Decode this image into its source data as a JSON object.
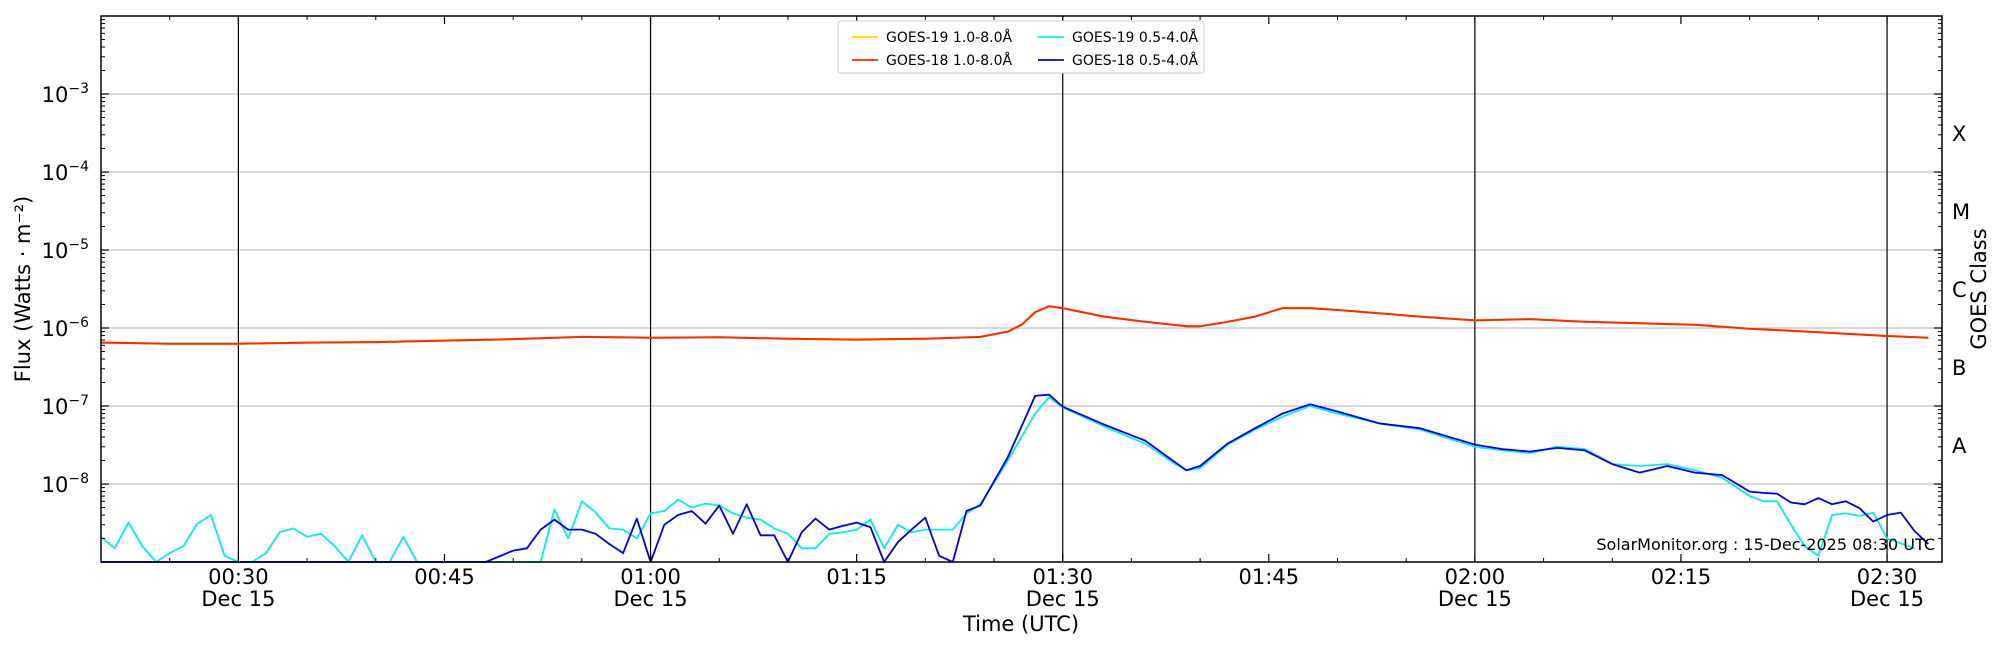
{
  "chart_data": {
    "type": "line",
    "xlabel": "Time (UTC)",
    "ylabel": "Flux (Watts · m⁻²)",
    "y2label": "GOES Class",
    "yscale": "log",
    "xlim": [
      "00:20",
      "02:34"
    ],
    "ylim": [
      1e-09,
      0.01
    ],
    "grid": "horizontal",
    "legend": "top-center",
    "credit": "SolarMonitor.org : 15-Dec-2025 08:30 UTC",
    "x_ticks": [
      {
        "time": "00:30",
        "line1": "00:30",
        "line2": "Dec 15"
      },
      {
        "time": "00:45",
        "line1": "00:45",
        "line2": ""
      },
      {
        "time": "01:00",
        "line1": "01:00",
        "line2": "Dec 15"
      },
      {
        "time": "01:15",
        "line1": "01:15",
        "line2": ""
      },
      {
        "time": "01:30",
        "line1": "01:30",
        "line2": "Dec 15"
      },
      {
        "time": "01:45",
        "line1": "01:45",
        "line2": ""
      },
      {
        "time": "02:00",
        "line1": "02:00",
        "line2": "Dec 15"
      },
      {
        "time": "02:15",
        "line1": "02:15",
        "line2": ""
      },
      {
        "time": "02:30",
        "line1": "02:30",
        "line2": "Dec 15"
      }
    ],
    "y_ticks": [
      {
        "exp": -8,
        "base": "10",
        "sup": "−8"
      },
      {
        "exp": -7,
        "base": "10",
        "sup": "−7"
      },
      {
        "exp": -6,
        "base": "10",
        "sup": "−6"
      },
      {
        "exp": -5,
        "base": "10",
        "sup": "−5"
      },
      {
        "exp": -4,
        "base": "10",
        "sup": "−4"
      },
      {
        "exp": -3,
        "base": "10",
        "sup": "−3"
      }
    ],
    "goes_classes": [
      {
        "label": "A",
        "exp": -7.5
      },
      {
        "label": "B",
        "exp": -6.5
      },
      {
        "label": "C",
        "exp": -5.5
      },
      {
        "label": "M",
        "exp": -4.5
      },
      {
        "label": "X",
        "exp": -3.5
      }
    ],
    "vertical_lines": [
      "00:30",
      "01:00",
      "01:30",
      "02:00",
      "02:30"
    ],
    "series": [
      {
        "name": "GOES-19 1.0-8.0Å",
        "color": "#ffd700",
        "x": [
          "00:20",
          "00:25",
          "00:30",
          "00:35",
          "00:40",
          "00:45",
          "00:50",
          "00:55",
          "01:00",
          "01:05",
          "01:10",
          "01:15",
          "01:20",
          "01:24",
          "01:26",
          "01:27",
          "01:28",
          "01:29",
          "01:30",
          "01:33",
          "01:36",
          "01:39",
          "01:40",
          "01:42",
          "01:44",
          "01:46",
          "01:48",
          "01:50",
          "01:53",
          "01:56",
          "02:00",
          "02:04",
          "02:08",
          "02:12",
          "02:16",
          "02:20",
          "02:25",
          "02:30",
          "02:33"
        ],
        "y": [
          6.5e-07,
          6.3e-07,
          6.3e-07,
          6.5e-07,
          6.6e-07,
          6.9e-07,
          7.2e-07,
          7.7e-07,
          7.5e-07,
          7.6e-07,
          7.3e-07,
          7.1e-07,
          7.3e-07,
          7.7e-07,
          9e-07,
          1.1e-06,
          1.6e-06,
          1.9e-06,
          1.8e-06,
          1.4e-06,
          1.2e-06,
          1.05e-06,
          1.05e-06,
          1.2e-06,
          1.4e-06,
          1.8e-06,
          1.8e-06,
          1.7e-06,
          1.55e-06,
          1.4e-06,
          1.25e-06,
          1.3e-06,
          1.2e-06,
          1.15e-06,
          1.1e-06,
          9.8e-07,
          8.8e-07,
          7.9e-07,
          7.5e-07
        ]
      },
      {
        "name": "GOES-18 1.0-8.0Å",
        "color": "#ff2a00",
        "x": [
          "00:20",
          "00:25",
          "00:30",
          "00:35",
          "00:40",
          "00:45",
          "00:50",
          "00:55",
          "01:00",
          "01:05",
          "01:10",
          "01:15",
          "01:20",
          "01:24",
          "01:26",
          "01:27",
          "01:28",
          "01:29",
          "01:30",
          "01:33",
          "01:36",
          "01:39",
          "01:40",
          "01:42",
          "01:44",
          "01:46",
          "01:48",
          "01:50",
          "01:53",
          "01:56",
          "02:00",
          "02:04",
          "02:08",
          "02:12",
          "02:16",
          "02:20",
          "02:25",
          "02:30",
          "02:33"
        ],
        "y": [
          6.5e-07,
          6.3e-07,
          6.3e-07,
          6.5e-07,
          6.6e-07,
          6.9e-07,
          7.2e-07,
          7.7e-07,
          7.5e-07,
          7.6e-07,
          7.3e-07,
          7.1e-07,
          7.3e-07,
          7.7e-07,
          9e-07,
          1.1e-06,
          1.6e-06,
          1.9e-06,
          1.8e-06,
          1.4e-06,
          1.2e-06,
          1.05e-06,
          1.05e-06,
          1.2e-06,
          1.4e-06,
          1.8e-06,
          1.8e-06,
          1.7e-06,
          1.55e-06,
          1.4e-06,
          1.25e-06,
          1.3e-06,
          1.2e-06,
          1.15e-06,
          1.1e-06,
          9.8e-07,
          8.8e-07,
          7.9e-07,
          7.5e-07
        ]
      },
      {
        "name": "GOES-19 0.5-4.0Å",
        "color": "#00f0f0",
        "x": [
          "00:20",
          "00:21",
          "00:22",
          "00:23",
          "00:24",
          "00:25",
          "00:26",
          "00:27",
          "00:28",
          "00:29",
          "00:30",
          "00:31",
          "00:32",
          "00:33",
          "00:34",
          "00:35",
          "00:36",
          "00:37",
          "00:38",
          "00:39",
          "00:40",
          "00:41",
          "00:42",
          "00:43",
          "00:44",
          "00:45",
          "00:50",
          "00:52",
          "00:53",
          "00:54",
          "00:55",
          "00:56",
          "00:57",
          "00:58",
          "00:59",
          "01:00",
          "01:01",
          "01:02",
          "01:03",
          "01:04",
          "01:05",
          "01:06",
          "01:07",
          "01:08",
          "01:09",
          "01:10",
          "01:11",
          "01:12",
          "01:13",
          "01:14",
          "01:15",
          "01:16",
          "01:17",
          "01:18",
          "01:19",
          "01:20",
          "01:21",
          "01:22",
          "01:23",
          "01:24",
          "01:26",
          "01:28",
          "01:29",
          "01:30",
          "01:33",
          "01:36",
          "01:38",
          "01:39",
          "01:40",
          "01:42",
          "01:44",
          "01:46",
          "01:48",
          "01:50",
          "01:53",
          "01:56",
          "02:00",
          "02:02",
          "02:04",
          "02:06",
          "02:08",
          "02:10",
          "02:12",
          "02:14",
          "02:16",
          "02:18",
          "02:20",
          "02:21",
          "02:22",
          "02:23",
          "02:24",
          "02:25",
          "02:26",
          "02:27",
          "02:28",
          "02:29",
          "02:30",
          "02:32"
        ],
        "y": [
          2.1e-09,
          1.5e-09,
          3.2e-09,
          1.6e-09,
          1e-09,
          1.3e-09,
          1.6e-09,
          3.1e-09,
          4e-09,
          1.2e-09,
          1e-09,
          1e-09,
          1.3e-09,
          2.4e-09,
          2.7e-09,
          2.1e-09,
          2.3e-09,
          1.6e-09,
          1e-09,
          2.2e-09,
          1e-09,
          1e-09,
          2.1e-09,
          1e-09,
          1e-09,
          1e-09,
          1e-09,
          1e-09,
          4.7e-09,
          2e-09,
          6e-09,
          4.3e-09,
          2.7e-09,
          2.6e-09,
          2e-09,
          4.2e-09,
          4.5e-09,
          6.3e-09,
          5e-09,
          5.6e-09,
          5.3e-09,
          4.2e-09,
          3.7e-09,
          3.5e-09,
          2.7e-09,
          2.3e-09,
          1.5e-09,
          1.5e-09,
          2.3e-09,
          2.4e-09,
          2.6e-09,
          3.5e-09,
          1.5e-09,
          3e-09,
          2.4e-09,
          2.6e-09,
          2.6e-09,
          2.6e-09,
          4.2e-09,
          5.5e-09,
          2e-08,
          8e-08,
          1.3e-07,
          9.6e-08,
          5.5e-08,
          3.3e-08,
          1.9e-08,
          1.5e-08,
          1.6e-08,
          3.2e-08,
          5e-08,
          7.3e-08,
          1e-07,
          8e-08,
          6e-08,
          5e-08,
          3e-08,
          2.7e-08,
          2.5e-08,
          3e-08,
          2.8e-08,
          1.8e-08,
          1.7e-08,
          1.8e-08,
          1.5e-08,
          1.2e-08,
          7e-09,
          6e-09,
          6e-09,
          3e-09,
          1.6e-09,
          1.2e-09,
          4e-09,
          4.2e-09,
          3.9e-09,
          4.3e-09,
          2e-09,
          1.5e-09
        ]
      },
      {
        "name": "GOES-18 0.5-4.0Å",
        "color": "#0000e0",
        "x": [
          "00:20",
          "00:45",
          "00:48",
          "00:50",
          "00:51",
          "00:52",
          "00:53",
          "00:54",
          "00:55",
          "00:56",
          "00:57",
          "00:58",
          "00:59",
          "01:00",
          "01:01",
          "01:02",
          "01:03",
          "01:04",
          "01:05",
          "01:06",
          "01:07",
          "01:08",
          "01:09",
          "01:10",
          "01:11",
          "01:12",
          "01:13",
          "01:14",
          "01:15",
          "01:16",
          "01:17",
          "01:18",
          "01:19",
          "01:20",
          "01:21",
          "01:22",
          "01:23",
          "01:24",
          "01:26",
          "01:28",
          "01:29",
          "01:30",
          "01:33",
          "01:36",
          "01:38",
          "01:39",
          "01:40",
          "01:42",
          "01:44",
          "01:46",
          "01:48",
          "01:50",
          "01:53",
          "01:56",
          "02:00",
          "02:02",
          "02:04",
          "02:06",
          "02:08",
          "02:10",
          "02:12",
          "02:14",
          "02:16",
          "02:18",
          "02:20",
          "02:21",
          "02:22",
          "02:23",
          "02:24",
          "02:25",
          "02:26",
          "02:27",
          "02:28",
          "02:29",
          "02:30",
          "02:31",
          "02:32",
          "02:33"
        ],
        "y": [
          1e-09,
          1e-09,
          1e-09,
          1.4e-09,
          1.5e-09,
          2.6e-09,
          3.5e-09,
          2.6e-09,
          2.6e-09,
          2.3e-09,
          1.7e-09,
          1.3e-09,
          3.6e-09,
          1e-09,
          3e-09,
          4e-09,
          4.5e-09,
          3.1e-09,
          5.3e-09,
          2.3e-09,
          5.5e-09,
          2.2e-09,
          2.2e-09,
          1e-09,
          2.4e-09,
          3.6e-09,
          2.6e-09,
          2.9e-09,
          3.2e-09,
          2.8e-09,
          1e-09,
          1.8e-09,
          2.6e-09,
          3.7e-09,
          1.2e-09,
          1e-09,
          4.5e-09,
          5.3e-09,
          2.2e-08,
          1.35e-07,
          1.4e-07,
          9.8e-08,
          5.8e-08,
          3.6e-08,
          2e-08,
          1.5e-08,
          1.7e-08,
          3.3e-08,
          5.2e-08,
          8e-08,
          1.05e-07,
          8.5e-08,
          6e-08,
          5.2e-08,
          3.2e-08,
          2.8e-08,
          2.6e-08,
          2.9e-08,
          2.7e-08,
          1.8e-08,
          1.4e-08,
          1.7e-08,
          1.4e-08,
          1.3e-08,
          8e-09,
          7.7e-09,
          7.5e-09,
          5.8e-09,
          5.5e-09,
          6.6e-09,
          5.5e-09,
          6e-09,
          4.9e-09,
          3.3e-09,
          4e-09,
          4.3e-09,
          2.5e-09,
          1.7e-09
        ]
      }
    ]
  }
}
